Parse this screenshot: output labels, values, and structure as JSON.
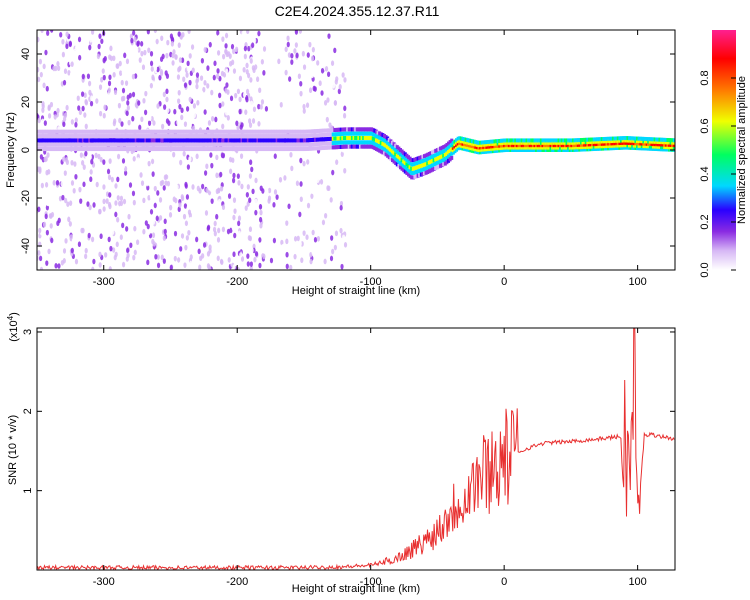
{
  "title": "C2E4.2024.355.12.37.R11",
  "colors": {
    "snr_line": "#e83030",
    "axis": "#000000",
    "background": "#ffffff"
  },
  "chart_data": [
    {
      "type": "heatmap",
      "xlabel": "Height of straight line (km)",
      "ylabel": "Frequency (Hz)",
      "xlim": [
        -350,
        128
      ],
      "ylim": [
        -50,
        50
      ],
      "x_ticks": [
        -300,
        -200,
        -100,
        0,
        100
      ],
      "y_ticks": [
        -40,
        -20,
        0,
        20,
        40
      ],
      "colorbar": {
        "label": "Normalized spectral amplitude",
        "range": [
          0.0,
          1.0
        ],
        "ticks": [
          0.0,
          0.2,
          0.4,
          0.6,
          0.8
        ],
        "tick_labels": [
          "0.0",
          "0.2",
          "0.4",
          "0.6",
          "0.8"
        ],
        "colormap": [
          "#ffffff",
          "#d7b8f5",
          "#8a2be2",
          "#2a00ff",
          "#00d8ff",
          "#00ff60",
          "#f0ff00",
          "#ff7a00",
          "#ff0000",
          "#ff2090"
        ]
      },
      "ridge": [
        {
          "x": -250,
          "y": 4
        },
        {
          "x": -200,
          "y": 4
        },
        {
          "x": -150,
          "y": 4
        },
        {
          "x": -120,
          "y": 5
        },
        {
          "x": -100,
          "y": 5
        },
        {
          "x": -90,
          "y": 2
        },
        {
          "x": -80,
          "y": -3
        },
        {
          "x": -70,
          "y": -8
        },
        {
          "x": -60,
          "y": -6
        },
        {
          "x": -45,
          "y": -2
        },
        {
          "x": -35,
          "y": 3
        },
        {
          "x": -20,
          "y": 1
        },
        {
          "x": 0,
          "y": 2
        },
        {
          "x": 50,
          "y": 2
        },
        {
          "x": 90,
          "y": 3
        },
        {
          "x": 128,
          "y": 2
        }
      ]
    },
    {
      "type": "line",
      "xlabel": "Height of straight line (km)",
      "ylabel": "SNR (10 * v/v)",
      "y_multiplier": "(x10",
      "y_multiplier_exp": "4",
      "y_multiplier_close": ")",
      "xlim": [
        -350,
        128
      ],
      "ylim": [
        0,
        3.05
      ],
      "x_ticks": [
        -300,
        -200,
        -100,
        0,
        100
      ],
      "y_ticks": [
        1,
        2,
        3
      ],
      "series": [
        {
          "color": "#e83030",
          "x": [
            -350,
            -300,
            -200,
            -150,
            -120,
            -100,
            -90,
            -80,
            -70,
            -60,
            -50,
            -40,
            -30,
            -20,
            -10,
            0,
            10,
            20,
            30,
            50,
            70,
            85,
            90,
            95,
            97,
            100,
            105,
            110,
            128
          ],
          "y": [
            0.03,
            0.03,
            0.03,
            0.03,
            0.04,
            0.06,
            0.1,
            0.15,
            0.25,
            0.35,
            0.5,
            0.75,
            0.95,
            1.15,
            1.3,
            1.4,
            1.48,
            1.55,
            1.6,
            1.62,
            1.65,
            1.68,
            1.66,
            1.2,
            2.9,
            0.6,
            1.7,
            1.71,
            1.65
          ]
        }
      ]
    }
  ]
}
